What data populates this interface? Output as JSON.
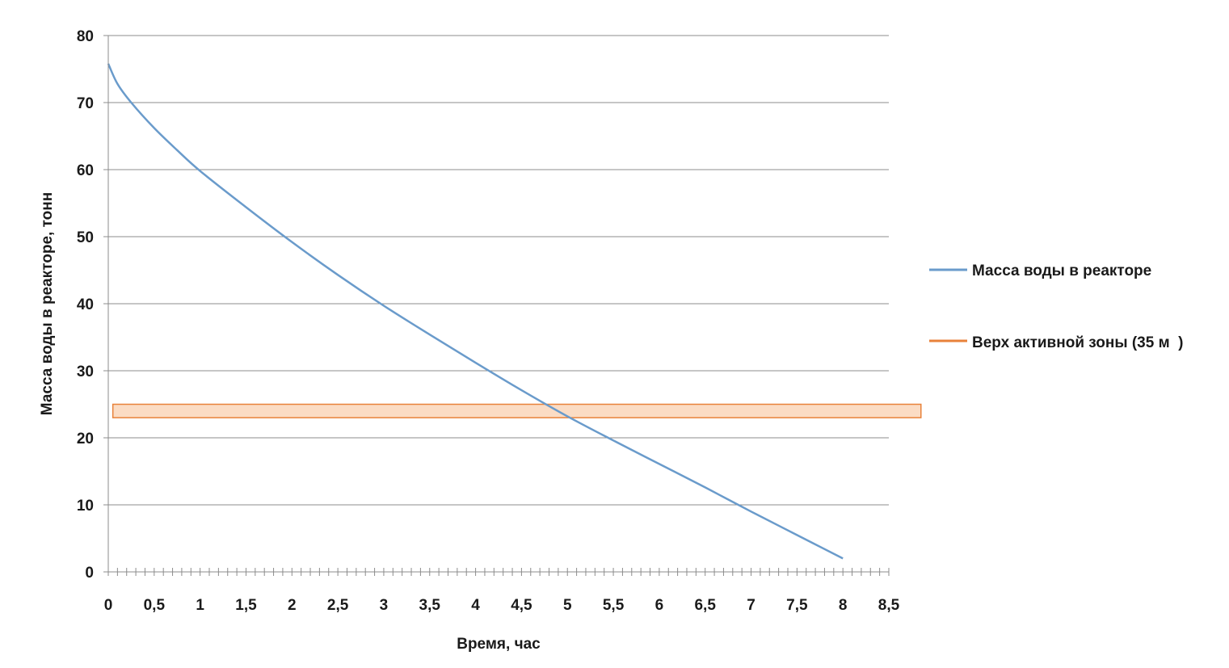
{
  "chart_data": {
    "type": "line",
    "ylabel": "Масса воды в реакторе, тонн",
    "xlabel": "Время, час",
    "xlim": [
      0,
      8.5
    ],
    "ylim": [
      0,
      80
    ],
    "y_ticks": [
      "0",
      "10",
      "20",
      "30",
      "40",
      "50",
      "60",
      "70",
      "80"
    ],
    "x_ticks": [
      "0",
      "0,5",
      "1",
      "1,5",
      "2",
      "2,5",
      "3",
      "3,5",
      "4",
      "4,5",
      "5",
      "5,5",
      "6",
      "6,5",
      "7",
      "7,5",
      "8",
      "8,5"
    ],
    "minor_tick_step": 0.1,
    "grid": "horizontal",
    "legend_position": "right",
    "series": [
      {
        "name": "Масса воды в реакторе",
        "color": "#6a9bcb",
        "x": [
          0,
          0.1,
          0.25,
          0.5,
          0.75,
          1,
          1.5,
          2,
          2.5,
          3,
          3.5,
          4,
          4.5,
          5,
          5.5,
          6,
          6.5,
          7,
          7.5,
          8
        ],
        "y": [
          75.8,
          72.8,
          70.0,
          66.2,
          62.9,
          59.8,
          54.4,
          49.2,
          44.3,
          39.7,
          35.4,
          31.2,
          27.1,
          23.2,
          19.6,
          16.1,
          12.6,
          9.0,
          5.5,
          2.0
        ]
      },
      {
        "name": "Верх активной зоны (35 м  )",
        "color": "#e8823a",
        "band": {
          "x": [
            0.05,
            8.85
          ],
          "y": [
            23,
            25
          ]
        },
        "fill": "#fbdcc4"
      }
    ]
  }
}
